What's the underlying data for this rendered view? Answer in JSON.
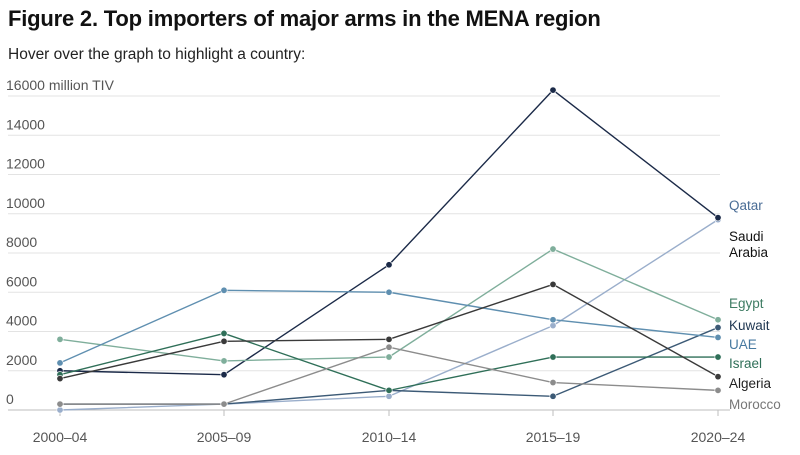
{
  "header": {
    "title": "Figure 2. Top importers of major arms in the MENA region",
    "subtitle": "Hover over the graph to highlight a country:"
  },
  "chart_data": {
    "type": "line",
    "categories": [
      "2000–04",
      "2005–09",
      "2010–14",
      "2015–19",
      "2020–24"
    ],
    "ylim": [
      0,
      16000
    ],
    "y_ticks": [
      0,
      2000,
      4000,
      6000,
      8000,
      10000,
      12000,
      14000,
      16000
    ],
    "y_tick_labels": [
      "0",
      "2000",
      "4000",
      "6000",
      "8000",
      "10000",
      "12000",
      "14000",
      "16000 million TIV"
    ],
    "grid": true,
    "series": [
      {
        "name": "Qatar",
        "label_lines": [
          "Qatar"
        ],
        "color": "#9aaecb",
        "label_color": "#4a6d96",
        "values": [
          0,
          300,
          700,
          4300,
          9700
        ]
      },
      {
        "name": "Saudi Arabia",
        "label_lines": [
          "Saudi",
          "Arabia"
        ],
        "color": "#1b2a48",
        "label_color": "#111111",
        "values": [
          2000,
          1800,
          7400,
          16300,
          9800
        ]
      },
      {
        "name": "Egypt",
        "label_lines": [
          "Egypt"
        ],
        "color": "#7fae9b",
        "label_color": "#3f7d64",
        "values": [
          3600,
          2500,
          2700,
          8200,
          4600
        ]
      },
      {
        "name": "Kuwait",
        "label_lines": [
          "Kuwait"
        ],
        "color": "#3c5a76",
        "label_color": "#1d3550",
        "values": [
          300,
          300,
          1000,
          700,
          4200
        ]
      },
      {
        "name": "UAE",
        "label_lines": [
          "UAE"
        ],
        "color": "#5f8fb0",
        "label_color": "#4779a0",
        "values": [
          2400,
          6100,
          6000,
          4600,
          3700
        ]
      },
      {
        "name": "Israel",
        "label_lines": [
          "Israel"
        ],
        "color": "#2f6f58",
        "label_color": "#2f6f58",
        "values": [
          1800,
          3900,
          1000,
          2700,
          2700
        ]
      },
      {
        "name": "Algeria",
        "label_lines": [
          "Algeria"
        ],
        "color": "#3a3a3a",
        "label_color": "#222222",
        "values": [
          1600,
          3500,
          3600,
          6400,
          1700
        ]
      },
      {
        "name": "Morocco",
        "label_lines": [
          "Morocco"
        ],
        "color": "#8c8c8c",
        "label_color": "#777777",
        "values": [
          300,
          300,
          3200,
          1400,
          1000
        ]
      }
    ]
  }
}
